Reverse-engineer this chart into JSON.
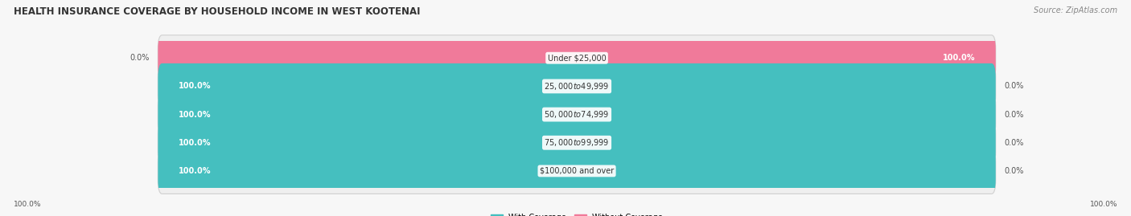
{
  "title": "HEALTH INSURANCE COVERAGE BY HOUSEHOLD INCOME IN WEST KOOTENAI",
  "source": "Source: ZipAtlas.com",
  "categories": [
    "Under $25,000",
    "$25,000 to $49,999",
    "$50,000 to $74,999",
    "$75,000 to $99,999",
    "$100,000 and over"
  ],
  "with_coverage": [
    0.0,
    100.0,
    100.0,
    100.0,
    100.0
  ],
  "without_coverage": [
    100.0,
    0.0,
    0.0,
    0.0,
    0.0
  ],
  "color_with": "#45bfbf",
  "color_without": "#f07a9a",
  "bg_color": "#f7f7f7",
  "bar_bg": "#e8e8e8",
  "bar_height": 0.62,
  "figsize": [
    14.06,
    2.69
  ],
  "dpi": 100
}
